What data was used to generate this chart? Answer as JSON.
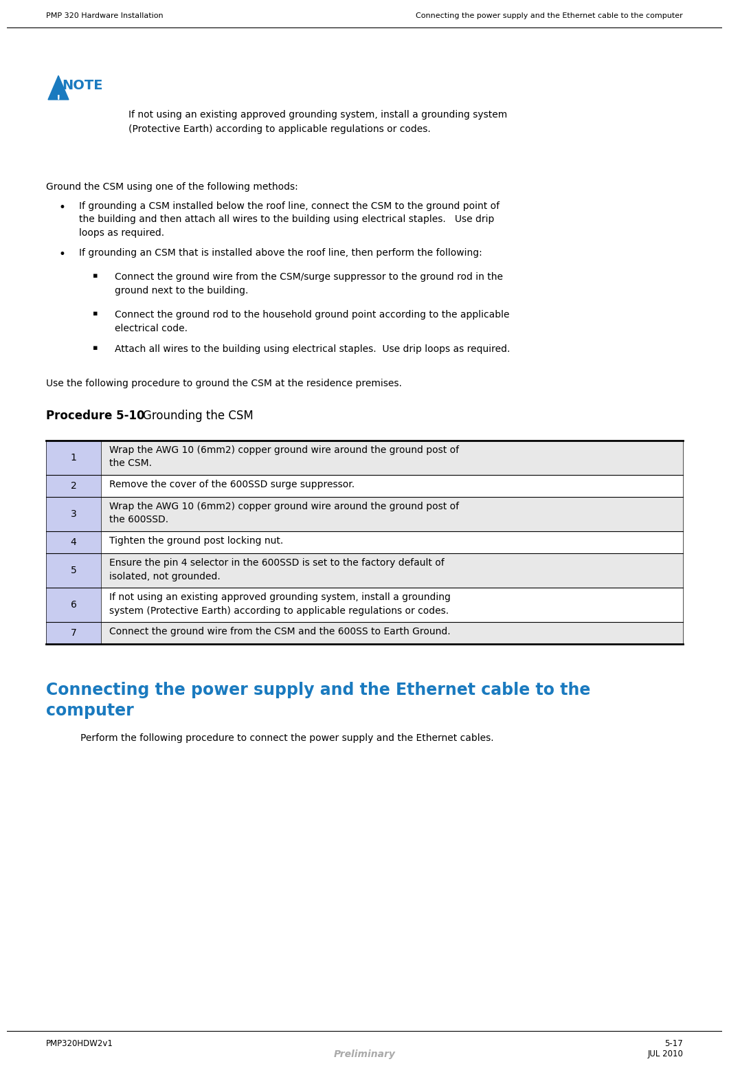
{
  "header_left": "PMP 320 Hardware Installation",
  "header_right": "Connecting the power supply and the Ethernet cable to the computer",
  "footer_left": "PMP320HDW2v1",
  "footer_center": "Preliminary",
  "footer_right": "5-17",
  "footer_date": "JUL 2010",
  "note_label": "NOTE",
  "note_text": "If not using an existing approved grounding system, install a grounding system\n(Protective Earth) according to applicable regulations or codes.",
  "body_intro": "Ground the CSM using one of the following methods:",
  "bullet1": "If grounding a CSM installed below the roof line, connect the CSM to the ground point of\nthe building and then attach all wires to the building using electrical staples.   Use drip\nloops as required.",
  "bullet2": "If grounding an CSM that is installed above the roof line, then perform the following:",
  "sub1": "Connect the ground wire from the CSM/surge suppressor to the ground rod in the\nground next to the building.",
  "sub2": "Connect the ground rod to the household ground point according to the applicable\nelectrical code.",
  "sub3": "Attach all wires to the building using electrical staples.  Use drip loops as required.",
  "use_following": "Use the following procedure to ground the CSM at the residence premises.",
  "proc_bold": "Procedure 5-10",
  "proc_normal": "    Grounding the CSM",
  "table_rows": [
    [
      "1",
      "Wrap the AWG 10 (6mm2) copper ground wire around the ground post of\nthe CSM."
    ],
    [
      "2",
      "Remove the cover of the 600SSD surge suppressor."
    ],
    [
      "3",
      "Wrap the AWG 10 (6mm2) copper ground wire around the ground post of\nthe 600SSD."
    ],
    [
      "4",
      "Tighten the ground post locking nut."
    ],
    [
      "5",
      "Ensure the pin 4 selector in the 600SSD is set to the factory default of\nisolated, not grounded."
    ],
    [
      "6",
      "If not using an existing approved grounding system, install a grounding\nsystem (Protective Earth) according to applicable regulations or codes."
    ],
    [
      "7",
      "Connect the ground wire from the CSM and the 600SS to Earth Ground."
    ]
  ],
  "section_heading_line1": "Connecting the power supply and the Ethernet cable to the",
  "section_heading_line2": "computer",
  "section_body": "Perform the following procedure to connect the power supply and the Ethernet cables.",
  "blue_color": "#1a7abf",
  "table_num_bg": "#c8ccf0",
  "table_row_bg_odd": "#e8e8e8",
  "table_row_bg_even": "#ffffff",
  "gray_text": "#aaaaaa",
  "black": "#000000",
  "white": "#ffffff"
}
